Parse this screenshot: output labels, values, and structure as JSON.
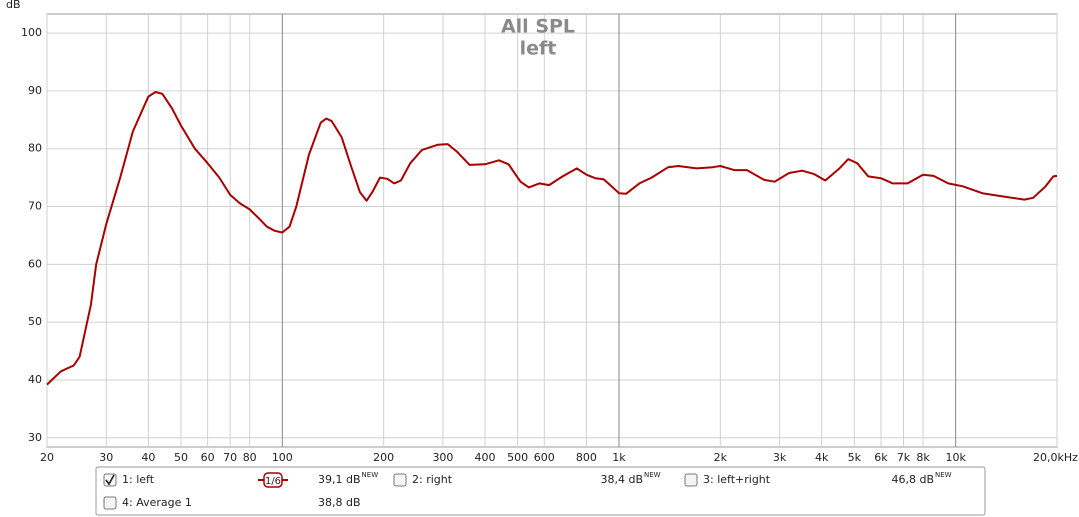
{
  "chart_data": {
    "type": "line",
    "title": "All SPL",
    "subtitle": "left",
    "y_label": "dB",
    "log_x": true,
    "grid": true,
    "xlim": [
      20,
      20000
    ],
    "ylim": [
      28.4,
      103.3
    ],
    "xticks": [
      20,
      30,
      40,
      50,
      60,
      70,
      80,
      100,
      200,
      300,
      400,
      500,
      600,
      800,
      {
        "value": 1000,
        "label": "1k"
      },
      {
        "value": 2000,
        "label": "2k"
      },
      {
        "value": 3000,
        "label": "3k"
      },
      {
        "value": 4000,
        "label": "4k"
      },
      {
        "value": 5000,
        "label": "5k"
      },
      {
        "value": 6000,
        "label": "6k"
      },
      {
        "value": 7000,
        "label": "7k"
      },
      {
        "value": 8000,
        "label": "8k"
      },
      {
        "value": 10000,
        "label": "10k"
      },
      {
        "value": 20000,
        "label": "20,0kHz"
      }
    ],
    "yticks": [
      30,
      40,
      50,
      60,
      70,
      80,
      90,
      100
    ],
    "series": [
      {
        "name": "1: left",
        "color": "#a80000",
        "x": [
          20,
          22,
          24,
          25,
          27,
          28,
          30,
          33,
          36,
          40,
          42,
          44,
          47,
          50,
          55,
          60,
          65,
          70,
          75,
          80,
          85,
          90,
          95,
          100,
          105,
          110,
          120,
          130,
          135,
          140,
          150,
          160,
          170,
          178,
          185,
          195,
          205,
          215,
          225,
          240,
          260,
          290,
          310,
          330,
          360,
          400,
          440,
          470,
          510,
          540,
          580,
          620,
          680,
          750,
          800,
          850,
          900,
          950,
          1000,
          1050,
          1150,
          1250,
          1400,
          1500,
          1700,
          1900,
          2000,
          2200,
          2400,
          2700,
          2900,
          3200,
          3500,
          3800,
          4100,
          4500,
          4800,
          5100,
          5500,
          6000,
          6500,
          7200,
          8000,
          8600,
          9500,
          10500,
          12000,
          14000,
          16000,
          17000,
          18500,
          19500,
          20000
        ],
        "values": [
          39.2,
          41.5,
          42.5,
          44,
          53,
          60,
          67,
          75,
          83,
          89,
          89.8,
          89.5,
          87,
          84,
          80,
          77.5,
          75,
          72,
          70.5,
          69.5,
          68,
          66.5,
          65.8,
          65.5,
          66.5,
          70,
          79,
          84.5,
          85.2,
          84.8,
          82,
          77,
          72.5,
          71,
          72.5,
          75,
          74.8,
          74,
          74.5,
          77.5,
          79.8,
          80.7,
          80.8,
          79.5,
          77.2,
          77.3,
          78,
          77.3,
          74.3,
          73.3,
          74,
          73.7,
          75.2,
          76.6,
          75.5,
          74.9,
          74.7,
          73.5,
          72.3,
          72.2,
          74,
          75,
          76.8,
          77,
          76.6,
          76.8,
          77,
          76.3,
          76.3,
          74.6,
          74.3,
          75.8,
          76.2,
          75.6,
          74.5,
          76.5,
          78.2,
          77.5,
          75.2,
          74.9,
          74,
          74,
          75.5,
          75.3,
          74,
          73.5,
          72.3,
          71.7,
          71.2,
          71.5,
          73.5,
          75.2,
          75.3
        ]
      }
    ],
    "legend": {
      "smoothing": "1/6",
      "items": [
        {
          "label": "1: left",
          "level": "39,1 dB",
          "tag": "NEW",
          "color": "#a80000",
          "checked": true
        },
        {
          "label": "2: right",
          "level": "38,4 dB",
          "tag": "NEW",
          "color": "#1a7a1a",
          "checked": false
        },
        {
          "label": "3: left+right",
          "level": "46,8 dB",
          "tag": "NEW",
          "color": "#4040b8",
          "checked": false
        },
        {
          "label": "4: Average 1",
          "level": "38,8 dB",
          "color": "#d08000",
          "checked": false
        }
      ]
    }
  }
}
